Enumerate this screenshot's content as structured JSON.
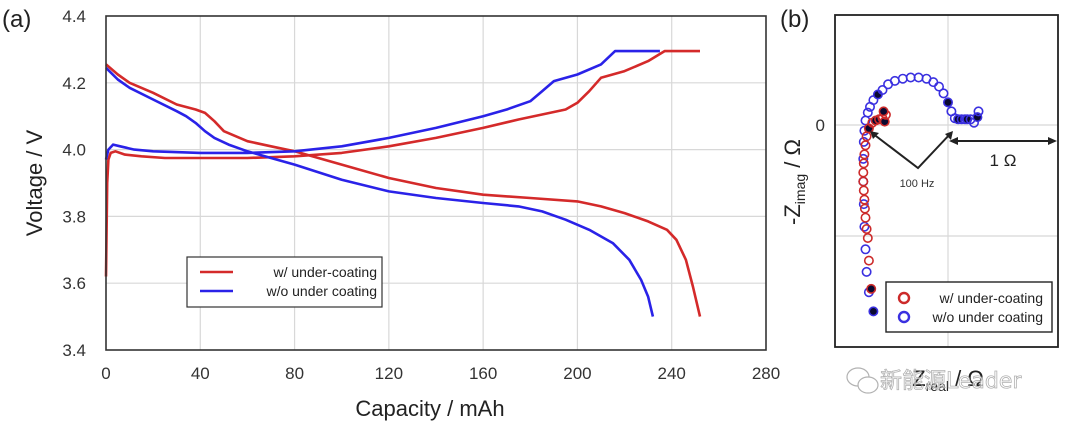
{
  "watermark": "新能源Leader",
  "chart_data": [
    {
      "panel_label": "(a)",
      "type": "line",
      "title": "",
      "xlabel": "Capacity / mAh",
      "ylabel": "Voltage / V",
      "xlim": [
        0,
        280
      ],
      "ylim": [
        3.4,
        4.4
      ],
      "xticks": [
        "0",
        "40",
        "80",
        "120",
        "160",
        "200",
        "240",
        "280"
      ],
      "yticks": [
        "3.4",
        "3.6",
        "3.8",
        "4.0",
        "4.2",
        "4.4"
      ],
      "grid": true,
      "legend_position": "lower-left-center",
      "legend": [
        {
          "label": "w/ under-coating",
          "color": "#d42a2a"
        },
        {
          "label": "w/o under coating",
          "color": "#2a22e8"
        }
      ],
      "series": [
        {
          "name": "w/ under-coating (charge)",
          "color": "#d42a2a",
          "x": [
            0,
            0.5,
            1,
            2,
            4,
            8,
            15,
            25,
            40,
            60,
            80,
            100,
            120,
            140,
            160,
            175,
            185,
            195,
            200,
            205,
            210,
            220,
            230,
            237,
            245,
            252
          ],
          "y": [
            3.62,
            3.9,
            3.97,
            3.99,
            3.995,
            3.985,
            3.98,
            3.975,
            3.975,
            3.975,
            3.98,
            3.99,
            4.01,
            4.035,
            4.065,
            4.09,
            4.105,
            4.12,
            4.14,
            4.175,
            4.215,
            4.235,
            4.265,
            4.295,
            4.295,
            4.295
          ]
        },
        {
          "name": "w/ under-coating (discharge)",
          "color": "#d42a2a",
          "x": [
            0,
            5,
            10,
            20,
            30,
            38,
            42,
            46,
            50,
            60,
            70,
            80,
            100,
            120,
            140,
            160,
            180,
            200,
            210,
            220,
            230,
            238,
            242,
            246,
            249,
            252
          ],
          "y": [
            4.255,
            4.225,
            4.2,
            4.17,
            4.135,
            4.12,
            4.11,
            4.085,
            4.055,
            4.025,
            4.01,
            3.995,
            3.955,
            3.915,
            3.885,
            3.865,
            3.855,
            3.845,
            3.83,
            3.81,
            3.785,
            3.76,
            3.73,
            3.67,
            3.59,
            3.5
          ]
        },
        {
          "name": "w/o under coating (charge)",
          "color": "#2a22e8",
          "x": [
            0,
            1,
            3,
            6,
            12,
            20,
            40,
            60,
            80,
            100,
            120,
            140,
            160,
            170,
            180,
            185,
            190,
            200,
            210,
            216,
            225,
            235
          ],
          "y": [
            3.97,
            4.0,
            4.015,
            4.01,
            4.0,
            3.995,
            3.99,
            3.99,
            3.995,
            4.01,
            4.035,
            4.065,
            4.1,
            4.12,
            4.145,
            4.175,
            4.205,
            4.225,
            4.255,
            4.295,
            4.295,
            4.295
          ]
        },
        {
          "name": "w/o under coating (discharge)",
          "color": "#2a22e8",
          "x": [
            0,
            5,
            10,
            20,
            30,
            34,
            38,
            42,
            46,
            52,
            60,
            70,
            80,
            100,
            120,
            140,
            160,
            175,
            185,
            195,
            205,
            215,
            222,
            227,
            230,
            232
          ],
          "y": [
            4.245,
            4.21,
            4.185,
            4.15,
            4.115,
            4.1,
            4.08,
            4.055,
            4.035,
            4.015,
            3.995,
            3.975,
            3.955,
            3.91,
            3.875,
            3.855,
            3.84,
            3.83,
            3.815,
            3.79,
            3.76,
            3.72,
            3.67,
            3.61,
            3.56,
            3.5
          ]
        }
      ]
    },
    {
      "panel_label": "(b)",
      "type": "scatter",
      "title": "",
      "xlabel": "Z_real / Ω",
      "ylabel": "-Z_imag / Ω",
      "ytick_labels": [
        "0"
      ],
      "grid": true,
      "legend_position": "lower-right",
      "legend": [
        {
          "label": "w/ under-coating",
          "color": "#cc2a2a",
          "marker": "open-circle"
        },
        {
          "label": "w/o under coating",
          "color": "#3a30e0",
          "marker": "open-circle"
        }
      ],
      "annotations": [
        {
          "text": "100 Hz",
          "type": "arrow-pair"
        },
        {
          "text": "1 Ω",
          "type": "scale-bar",
          "value_ohm": 1
        }
      ],
      "units": "Ω (x grid spacing = 1 Ω, zero reference at Z_imag = 0)",
      "series": [
        {
          "name": "w/ under-coating",
          "color": "#cc2a2a",
          "x": [
            0.32,
            0.3,
            0.29,
            0.28,
            0.27,
            0.265,
            0.26,
            0.255,
            0.25,
            0.25,
            0.255,
            0.26,
            0.27,
            0.28,
            0.3,
            0.33,
            0.36,
            0.39,
            0.42,
            0.44,
            0.45,
            0.43
          ],
          "y": [
            -1.45,
            -1.2,
            -1.0,
            -0.92,
            -0.82,
            -0.74,
            -0.66,
            -0.58,
            -0.5,
            -0.42,
            -0.34,
            -0.26,
            -0.18,
            -0.1,
            -0.03,
            0.02,
            0.04,
            0.05,
            0.06,
            0.03,
            0.09,
            0.12
          ],
          "filled_points_idx": [
            0,
            14,
            16,
            19,
            21
          ]
        },
        {
          "name": "w/o under coating",
          "color": "#3a30e0",
          "x": [
            0.34,
            0.3,
            0.28,
            0.27,
            0.26,
            0.255,
            0.25,
            0.25,
            0.255,
            0.26,
            0.27,
            0.29,
            0.31,
            0.34,
            0.38,
            0.42,
            0.47,
            0.53,
            0.6,
            0.67,
            0.74,
            0.81,
            0.87,
            0.92,
            0.96,
            1.0,
            1.03,
            1.06,
            1.09,
            1.12,
            1.15,
            1.17,
            1.2,
            1.23,
            1.26,
            1.27
          ],
          "y": [
            -1.65,
            -1.48,
            -1.3,
            -1.1,
            -0.9,
            -0.7,
            -0.5,
            -0.3,
            -0.15,
            -0.05,
            0.04,
            0.11,
            0.16,
            0.22,
            0.27,
            0.31,
            0.36,
            0.39,
            0.41,
            0.42,
            0.42,
            0.41,
            0.38,
            0.34,
            0.28,
            0.2,
            0.12,
            0.06,
            0.05,
            0.05,
            0.05,
            0.05,
            0.05,
            0.02,
            0.07,
            0.12
          ],
          "filled_points_idx": [
            0,
            14,
            25,
            28,
            31,
            34
          ]
        }
      ]
    }
  ]
}
